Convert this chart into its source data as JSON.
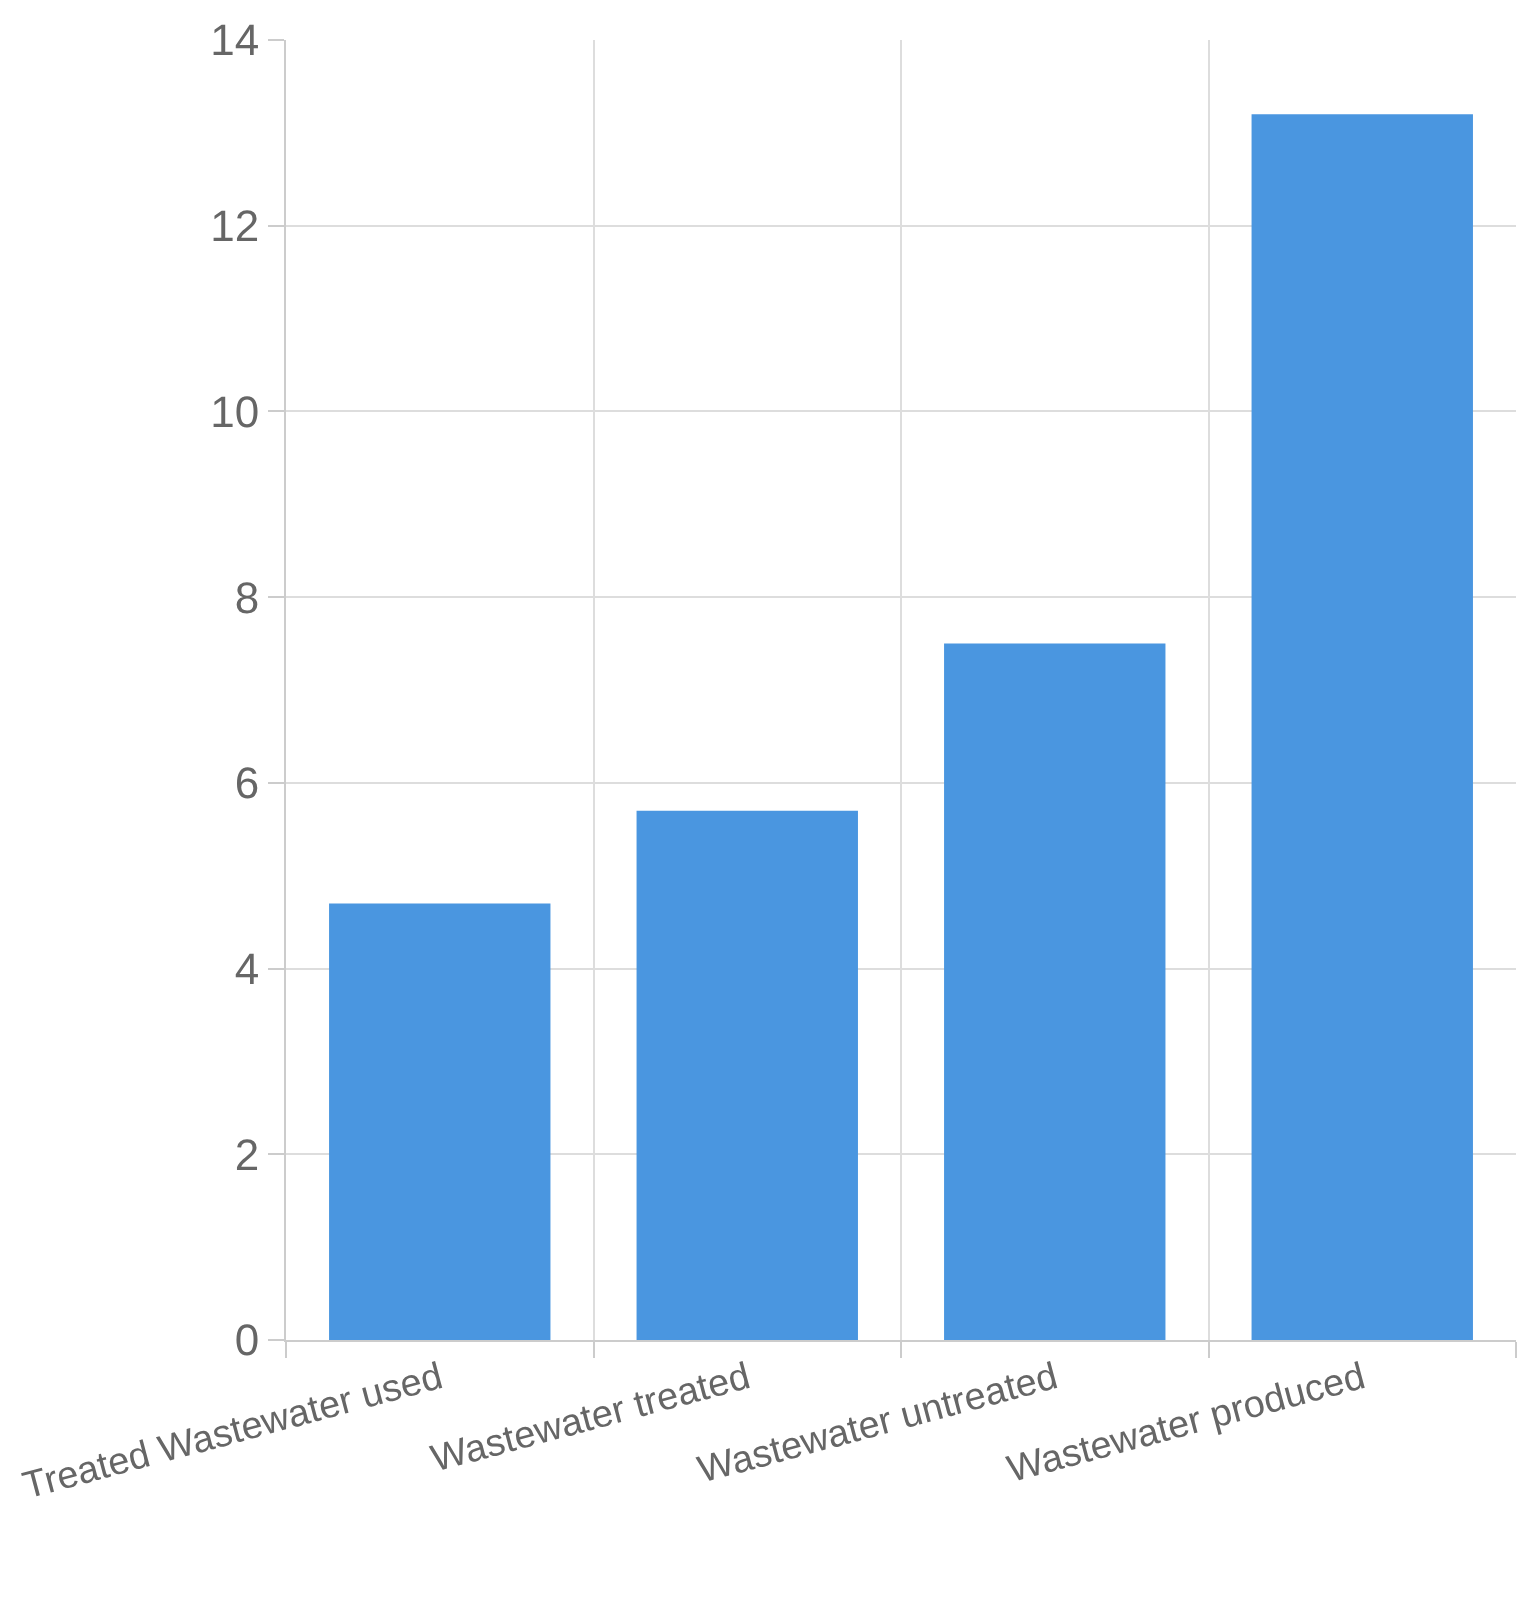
{
  "chart_data": {
    "type": "bar",
    "categories": [
      "Treated Wastewater used",
      "Wastewater treated",
      "Wastewater untreated",
      "Wastewater produced"
    ],
    "values": [
      4.7,
      5.7,
      7.5,
      13.2
    ],
    "color": "#4a96e0",
    "ylim": [
      0,
      14
    ],
    "yticks": [
      0,
      2,
      4,
      6,
      8,
      10,
      12,
      14
    ],
    "grid": true
  }
}
